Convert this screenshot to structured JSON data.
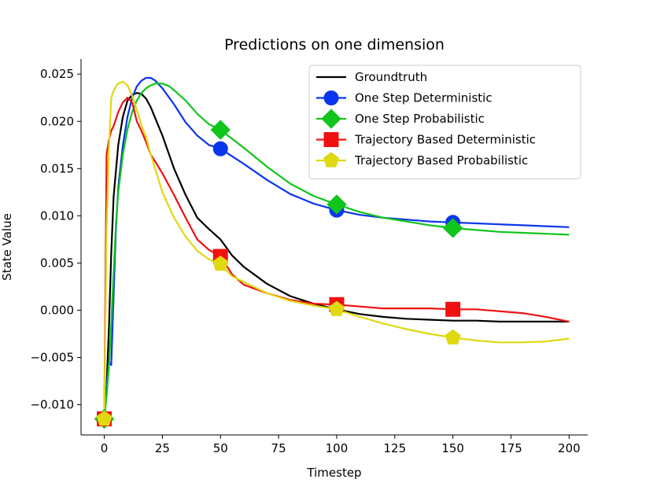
{
  "chart_data": {
    "type": "line",
    "title": "Predictions on one dimension",
    "xlabel": "Timestep",
    "ylabel": "State Value",
    "xlim": [
      -10,
      208
    ],
    "ylim": [
      -0.0132,
      0.0266
    ],
    "xticks": [
      0,
      25,
      50,
      75,
      100,
      125,
      150,
      175,
      200
    ],
    "xtick_labels": [
      "0",
      "25",
      "50",
      "75",
      "100",
      "125",
      "150",
      "175",
      "200"
    ],
    "yticks": [
      -0.01,
      -0.005,
      0.0,
      0.005,
      0.01,
      0.015,
      0.02,
      0.025
    ],
    "ytick_labels": [
      "−0.010",
      "−0.005",
      "0.000",
      "0.005",
      "0.010",
      "0.015",
      "0.020",
      "0.025"
    ],
    "grid": false,
    "legend_position": "top-right",
    "series": [
      {
        "name": "Groundtruth",
        "color": "#000000",
        "marker": "none",
        "x": [
          0,
          1,
          2,
          3,
          4,
          6,
          8,
          10,
          12,
          14,
          16,
          18,
          20,
          25,
          30,
          35,
          40,
          45,
          50,
          55,
          60,
          70,
          80,
          90,
          100,
          110,
          120,
          130,
          140,
          150,
          160,
          170,
          180,
          190,
          200
        ],
        "y": [
          -0.0115,
          -0.008,
          -0.002,
          0.006,
          0.012,
          0.0175,
          0.0205,
          0.0222,
          0.0228,
          0.023,
          0.0229,
          0.0224,
          0.0215,
          0.0185,
          0.015,
          0.0122,
          0.0098,
          0.0086,
          0.0075,
          0.0058,
          0.0046,
          0.0028,
          0.0015,
          0.0007,
          0.0001,
          -0.0004,
          -0.0007,
          -0.0009,
          -0.001,
          -0.0011,
          -0.0011,
          -0.0012,
          -0.0012,
          -0.0012,
          -0.0012
        ]
      },
      {
        "name": "One Step Deterministic",
        "color": "#0a35ee",
        "marker": "circle",
        "marker_x": [
          0,
          50,
          100,
          150
        ],
        "x": [
          0,
          1,
          2,
          3,
          4,
          5,
          6,
          8,
          10,
          12,
          14,
          16,
          18,
          20,
          22,
          25,
          30,
          35,
          40,
          45,
          50,
          60,
          70,
          80,
          90,
          100,
          110,
          120,
          130,
          140,
          150,
          160,
          170,
          180,
          190,
          200
        ],
        "y": [
          -0.0115,
          -0.008,
          -0.0055,
          -0.0058,
          0.0015,
          0.0085,
          0.013,
          0.0175,
          0.0205,
          0.0225,
          0.0237,
          0.0243,
          0.0246,
          0.0246,
          0.0243,
          0.0235,
          0.0218,
          0.0199,
          0.0185,
          0.0175,
          0.0171,
          0.0155,
          0.0138,
          0.0123,
          0.0113,
          0.0106,
          0.0101,
          0.0098,
          0.0096,
          0.0094,
          0.0093,
          0.0092,
          0.0091,
          0.009,
          0.0089,
          0.0088
        ]
      },
      {
        "name": "One Step Probabilistic",
        "color": "#10c51c",
        "marker": "diamond",
        "marker_x": [
          0,
          50,
          100,
          150
        ],
        "x": [
          0,
          1,
          2,
          3,
          4,
          5,
          6,
          8,
          10,
          12,
          14,
          16,
          18,
          20,
          22,
          25,
          28,
          30,
          35,
          40,
          45,
          50,
          60,
          70,
          80,
          90,
          100,
          110,
          120,
          130,
          140,
          150,
          160,
          170,
          180,
          190,
          200
        ],
        "y": [
          -0.0115,
          -0.009,
          -0.006,
          -0.0015,
          0.004,
          0.009,
          0.0125,
          0.0165,
          0.0192,
          0.021,
          0.0222,
          0.023,
          0.0235,
          0.0238,
          0.024,
          0.024,
          0.0237,
          0.0233,
          0.0222,
          0.0208,
          0.0197,
          0.0191,
          0.0172,
          0.0152,
          0.0134,
          0.0121,
          0.0112,
          0.0104,
          0.0098,
          0.0094,
          0.009,
          0.0087,
          0.0085,
          0.0083,
          0.0082,
          0.0081,
          0.008
        ]
      },
      {
        "name": "Trajectory Based Deterministic",
        "color": "#f01010",
        "marker": "square",
        "marker_x": [
          0,
          50,
          100,
          150
        ],
        "x": [
          0,
          1,
          2,
          3,
          4,
          6,
          8,
          10,
          12,
          14,
          16,
          18,
          20,
          25,
          30,
          35,
          40,
          45,
          50,
          55,
          60,
          70,
          80,
          90,
          100,
          110,
          120,
          130,
          140,
          150,
          160,
          170,
          180,
          190,
          200
        ],
        "y": [
          -0.0115,
          0.0165,
          0.018,
          0.019,
          0.0195,
          0.021,
          0.022,
          0.0225,
          0.022,
          0.02,
          0.019,
          0.0178,
          0.0165,
          0.0145,
          0.0122,
          0.0098,
          0.0075,
          0.0064,
          0.0057,
          0.0038,
          0.0027,
          0.0018,
          0.0011,
          0.0007,
          0.0006,
          0.0004,
          0.0002,
          0.0002,
          0.0002,
          0.0001,
          0.0001,
          -0.0001,
          -0.0003,
          -0.0007,
          -0.0012
        ]
      },
      {
        "name": "Trajectory Based Probabilistic",
        "color": "#e0d811",
        "marker": "pentagon",
        "marker_x": [
          0,
          50,
          100,
          150
        ],
        "x": [
          0,
          1,
          2,
          3,
          4,
          5,
          6,
          8,
          10,
          12,
          14,
          16,
          18,
          20,
          25,
          30,
          35,
          40,
          45,
          50,
          55,
          60,
          70,
          80,
          90,
          100,
          110,
          120,
          130,
          140,
          150,
          160,
          170,
          180,
          190,
          200
        ],
        "y": [
          -0.0115,
          0.0085,
          0.017,
          0.0225,
          0.0232,
          0.0237,
          0.024,
          0.0242,
          0.0238,
          0.0227,
          0.0212,
          0.0196,
          0.0183,
          0.0165,
          0.0125,
          0.0098,
          0.0078,
          0.0063,
          0.0054,
          0.0049,
          0.0036,
          0.003,
          0.0018,
          0.001,
          0.0005,
          0.0001,
          -0.0007,
          -0.0014,
          -0.002,
          -0.0025,
          -0.0029,
          -0.0032,
          -0.0034,
          -0.0034,
          -0.0033,
          -0.003
        ]
      }
    ]
  }
}
